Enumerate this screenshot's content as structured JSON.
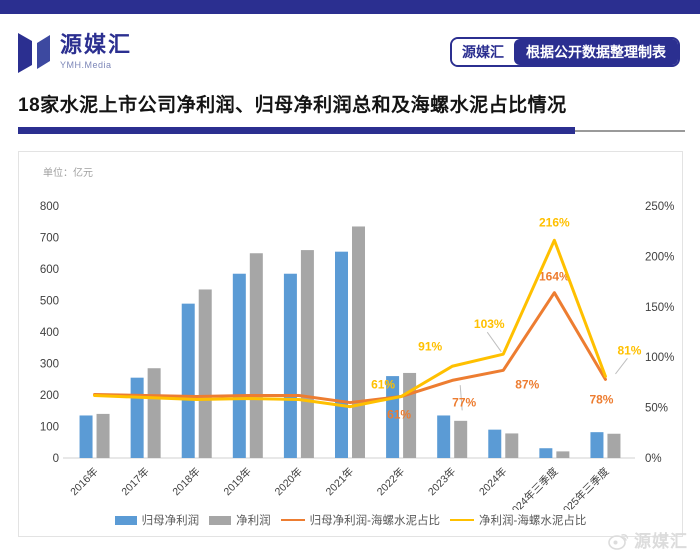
{
  "header": {
    "logo_text": "源媒汇",
    "logo_sub": "YMH.Media",
    "badge_left": "源媒汇",
    "badge_right": "根据公开数据整理制表"
  },
  "title": "18家水泥上市公司净利润、归母净利润总和及海螺水泥占比情况",
  "watermark_text": "源媒汇",
  "colors": {
    "brand_navy": "#2b2f90",
    "bar_blue": "#5b9bd5",
    "bar_gray": "#a6a6a6",
    "line_orange": "#ed7d31",
    "line_yellow": "#ffc000"
  },
  "chart_data": {
    "type": "bar",
    "subtype": "combo bar+line, dual axis",
    "unit_label": "单位：亿元",
    "categories": [
      "2016年",
      "2017年",
      "2018年",
      "2019年",
      "2020年",
      "2021年",
      "2022年",
      "2023年",
      "2024年",
      "2024年三季度",
      "2025年三季度"
    ],
    "series": [
      {
        "name": "归母净利润",
        "type": "bar",
        "axis": "left",
        "color": "#5b9bd5",
        "values": [
          135,
          255,
          490,
          585,
          585,
          655,
          260,
          135,
          90,
          31,
          82
        ]
      },
      {
        "name": "净利润",
        "type": "bar",
        "axis": "left",
        "color": "#a6a6a6",
        "values": [
          140,
          285,
          535,
          650,
          660,
          735,
          270,
          118,
          78,
          21,
          77
        ]
      },
      {
        "name": "归母净利润-海螺水泥占比",
        "type": "line",
        "axis": "right",
        "color": "#ed7d31",
        "values": [
          63,
          62,
          61,
          62,
          62,
          55,
          61,
          77,
          87,
          164,
          78
        ],
        "point_labels": [
          null,
          null,
          null,
          null,
          null,
          null,
          "61%",
          "77%",
          "87%",
          "164%",
          "78%"
        ]
      },
      {
        "name": "净利润-海螺水泥占比",
        "type": "line",
        "axis": "right",
        "color": "#ffc000",
        "values": [
          62,
          60,
          58,
          59,
          58,
          51,
          61,
          91,
          103,
          216,
          81
        ],
        "point_labels": [
          null,
          null,
          null,
          null,
          null,
          null,
          "61%",
          "91%",
          "103%",
          "216%",
          "81%"
        ]
      }
    ],
    "left_axis": {
      "min": 0,
      "max": 800,
      "ticks": [
        "0",
        "100",
        "200",
        "300",
        "400",
        "500",
        "600",
        "700",
        "800"
      ]
    },
    "right_axis": {
      "min": 0,
      "max": 250,
      "ticks": [
        "0%",
        "50%",
        "100%",
        "150%",
        "200%",
        "250%"
      ]
    },
    "grid": false,
    "legend_position": "bottom"
  }
}
